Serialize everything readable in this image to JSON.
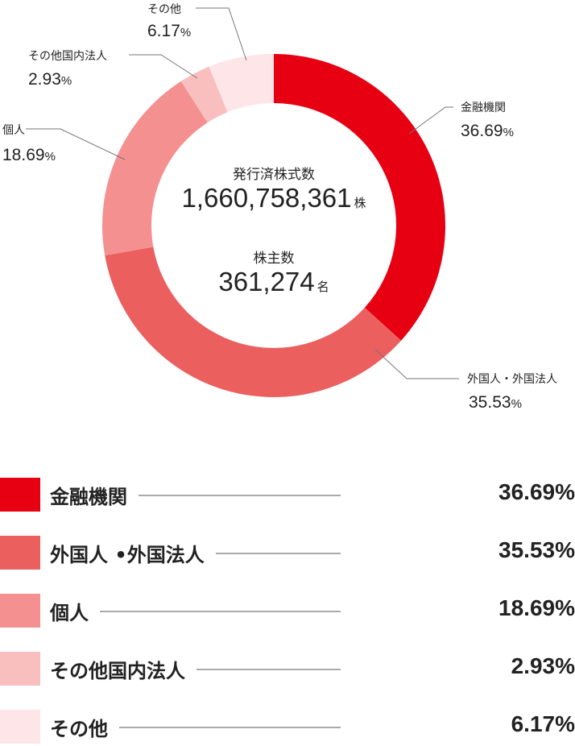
{
  "chart_data": {
    "type": "pie",
    "donut": true,
    "categories": [
      "金融機関",
      "外国人・外国法人",
      "個人",
      "その他国内法人",
      "その他"
    ],
    "values": [
      36.69,
      35.53,
      18.69,
      2.93,
      6.17
    ],
    "unit": "%",
    "colors": [
      "#E60012",
      "#EB5F5F",
      "#F59090",
      "#F9BEBE",
      "#FDE5E8"
    ],
    "start": "top, clockwise",
    "center": {
      "shares_label": "発行済株式数",
      "shares_value": "1,660,758,361",
      "shares_unit": "株",
      "holders_label": "株主数",
      "holders_value": "361,274",
      "holders_unit": "名"
    },
    "callouts": [
      {
        "label": "金融機関",
        "value": "36.69",
        "pct": "%"
      },
      {
        "label": "外国人・外国法人",
        "value": "35.53",
        "pct": "%"
      },
      {
        "label": "個人",
        "value": "18.69",
        "pct": "%"
      },
      {
        "label": "その他国内法人",
        "value": "2.93",
        "pct": "%"
      },
      {
        "label": "その他",
        "value": "6.17",
        "pct": "%"
      }
    ],
    "legend": [
      {
        "label": "金融機関",
        "value": "36.69%"
      },
      {
        "label": "外国人 •外国法人",
        "value": "35.53%"
      },
      {
        "label": "個人",
        "value": "18.69%"
      },
      {
        "label": "その他国内法人",
        "value": "2.93%"
      },
      {
        "label": "その他",
        "value": "6.17%"
      }
    ]
  }
}
